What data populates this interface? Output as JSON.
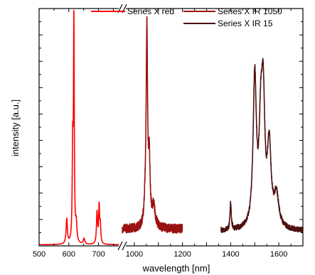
{
  "chart_data": {
    "type": "line",
    "xlabel": "wavelength [nm]",
    "ylabel": "intensity [a.u.]",
    "x_axis": {
      "broken": true,
      "break_between": [
        780,
        950
      ],
      "segments": [
        {
          "range": [
            500,
            780
          ],
          "ticks": [
            500,
            600,
            700
          ]
        },
        {
          "range": [
            950,
            1700
          ],
          "ticks": [
            1000,
            1200,
            1400,
            1600
          ]
        }
      ]
    },
    "y_axis": {
      "tick_labels_shown": false,
      "range": [
        0,
        1.05
      ]
    },
    "legend_position": "top-right",
    "series": [
      {
        "name": "Series X red",
        "color": "#ff0000",
        "peaks": [
          {
            "x": 593,
            "h": 0.11,
            "w": 2.5
          },
          {
            "x": 613,
            "h": 0.4,
            "w": 1.8
          },
          {
            "x": 617,
            "h": 0.97,
            "w": 1.6
          },
          {
            "x": 625,
            "h": 0.08,
            "w": 2.5
          },
          {
            "x": 651,
            "h": 0.025,
            "w": 3
          },
          {
            "x": 695,
            "h": 0.14,
            "w": 2.2
          },
          {
            "x": 702,
            "h": 0.16,
            "w": 1.8
          },
          {
            "x": 706,
            "h": 0.08,
            "w": 2.0
          }
        ],
        "baseline": 0.005,
        "x_range": [
          500,
          780
        ],
        "noise": 0
      },
      {
        "name": "Series X IR 1050",
        "color": "#991111",
        "peaks": [
          {
            "x": 1045,
            "h": 0.08,
            "w": 5
          },
          {
            "x": 1052,
            "h": 0.85,
            "w": 3.5
          },
          {
            "x": 1062,
            "h": 0.28,
            "w": 4
          },
          {
            "x": 1080,
            "h": 0.09,
            "w": 8
          }
        ],
        "baseline": 0.075,
        "x_range": [
          950,
          1200
        ],
        "noise": 0.02
      },
      {
        "name": "Series X IR 15",
        "color": "#4d0f0f",
        "peaks": [
          {
            "x": 1400,
            "h": 0.12,
            "w": 3
          },
          {
            "x": 1500,
            "h": 0.66,
            "w": 8
          },
          {
            "x": 1525,
            "h": 0.38,
            "w": 8
          },
          {
            "x": 1535,
            "h": 0.52,
            "w": 8
          },
          {
            "x": 1560,
            "h": 0.35,
            "w": 9
          },
          {
            "x": 1590,
            "h": 0.14,
            "w": 12
          }
        ],
        "baseline": 0.065,
        "x_range": [
          1360,
          1700
        ],
        "noise": 0.012
      }
    ]
  }
}
